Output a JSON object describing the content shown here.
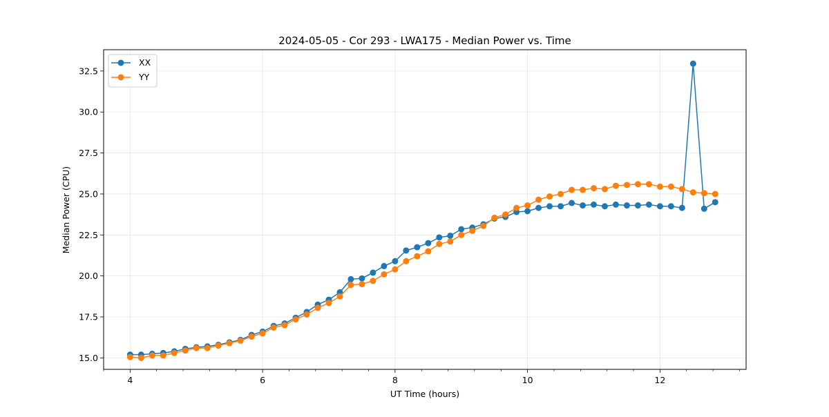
{
  "chart_data": {
    "type": "line",
    "title": "2024-05-05 - Cor 293 - LWA175 - Median Power vs. Time",
    "xlabel": "UT Time (hours)",
    "ylabel": "Median Power (CPU)",
    "xlim": [
      3.6,
      13.3
    ],
    "ylim": [
      14.3,
      33.8
    ],
    "xticks": [
      4,
      6,
      8,
      10,
      12
    ],
    "xtick_labels": [
      "4",
      "6",
      "8",
      "10",
      "12"
    ],
    "yticks": [
      15.0,
      17.5,
      20.0,
      22.5,
      25.0,
      27.5,
      30.0,
      32.5
    ],
    "ytick_labels": [
      "15.0",
      "17.5",
      "20.0",
      "22.5",
      "25.0",
      "27.5",
      "30.0",
      "32.5"
    ],
    "grid": true,
    "legend_position": "top-left",
    "x": [
      4.0,
      4.1667,
      4.3333,
      4.5,
      4.6667,
      4.8333,
      5.0,
      5.1667,
      5.3333,
      5.5,
      5.6667,
      5.8333,
      6.0,
      6.1667,
      6.3333,
      6.5,
      6.6667,
      6.8333,
      7.0,
      7.1667,
      7.3333,
      7.5,
      7.6667,
      7.8333,
      8.0,
      8.1667,
      8.3333,
      8.5,
      8.6667,
      8.8333,
      9.0,
      9.1667,
      9.3333,
      9.5,
      9.6667,
      9.8333,
      10.0,
      10.1667,
      10.3333,
      10.5,
      10.6667,
      10.8333,
      11.0,
      11.1667,
      11.3333,
      11.5,
      11.6667,
      11.8333,
      12.0,
      12.1667,
      12.3333,
      12.5,
      12.6667,
      12.8333
    ],
    "series": [
      {
        "name": "XX",
        "color": "#1f77b4",
        "values": [
          15.2,
          15.2,
          15.25,
          15.3,
          15.4,
          15.55,
          15.65,
          15.7,
          15.8,
          15.95,
          16.1,
          16.4,
          16.6,
          16.95,
          17.1,
          17.45,
          17.8,
          18.25,
          18.55,
          19.0,
          19.8,
          19.85,
          20.2,
          20.6,
          20.9,
          21.55,
          21.75,
          22.0,
          22.35,
          22.45,
          22.85,
          22.95,
          23.15,
          23.5,
          23.6,
          23.9,
          23.95,
          24.15,
          24.25,
          24.25,
          24.45,
          24.3,
          24.35,
          24.25,
          24.35,
          24.3,
          24.3,
          24.35,
          24.25,
          24.25,
          24.15,
          32.95,
          24.1,
          24.5
        ]
      },
      {
        "name": "YY",
        "color": "#ff7f0e",
        "values": [
          15.05,
          15.0,
          15.15,
          15.15,
          15.3,
          15.45,
          15.6,
          15.6,
          15.75,
          15.9,
          16.05,
          16.3,
          16.5,
          16.85,
          17.0,
          17.35,
          17.65,
          18.05,
          18.35,
          18.75,
          19.45,
          19.5,
          19.7,
          20.1,
          20.4,
          20.9,
          21.2,
          21.5,
          21.95,
          22.1,
          22.5,
          22.75,
          23.05,
          23.55,
          23.75,
          24.15,
          24.3,
          24.65,
          24.85,
          25.0,
          25.25,
          25.25,
          25.35,
          25.3,
          25.5,
          25.55,
          25.6,
          25.6,
          25.45,
          25.45,
          25.3,
          25.1,
          25.05,
          25.0
        ]
      }
    ]
  }
}
